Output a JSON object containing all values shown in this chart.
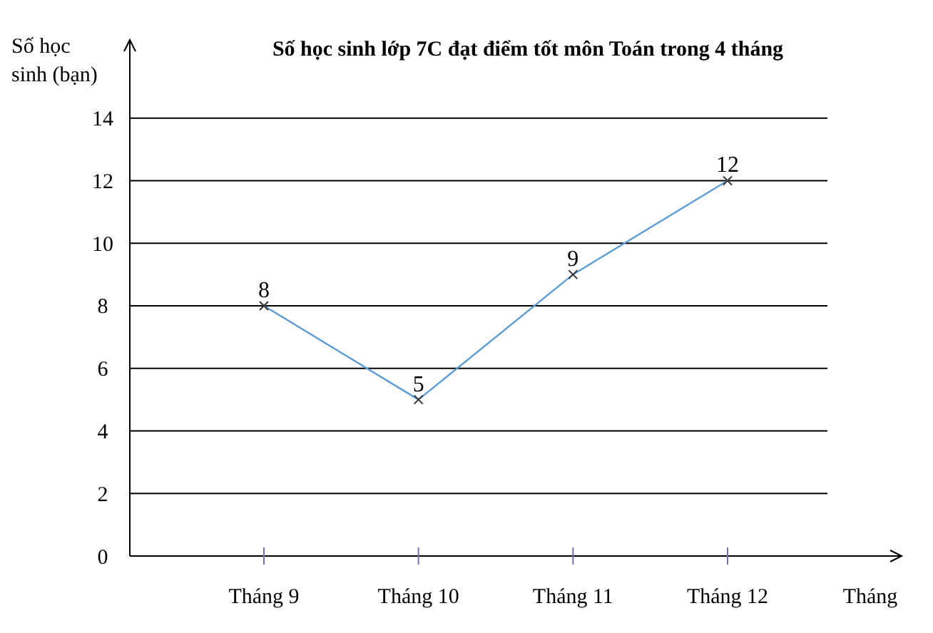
{
  "chart_data": {
    "type": "line",
    "title": "Số học sinh lớp 7C đạt điểm tốt môn Toán trong 4 tháng",
    "xlabel": "Tháng",
    "ylabel": "Số học sinh (bạn)",
    "categories": [
      "Tháng 9",
      "Tháng 10",
      "Tháng 11",
      "Tháng 12"
    ],
    "series": [
      {
        "color": "#5b9bd5",
        "values": [
          8,
          5,
          9,
          12
        ]
      }
    ],
    "ylim": [
      0,
      16.5
    ],
    "yticks": [
      0,
      2,
      4,
      6,
      8,
      10,
      12,
      14
    ],
    "grid": "y",
    "marker": "cross",
    "data_labels": true
  }
}
